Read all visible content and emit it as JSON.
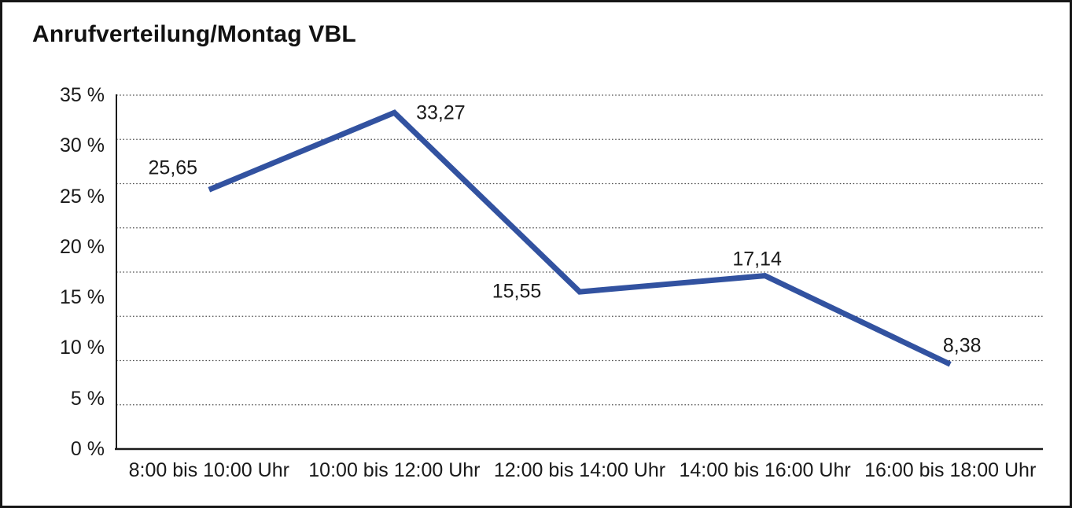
{
  "window": {
    "title": "Anrufverteilung/Montag VBL"
  },
  "chart_data": {
    "type": "line",
    "title": "Anrufverteilung/Montag VBL",
    "categories": [
      "8:00 bis 10:00 Uhr",
      "10:00 bis 12:00 Uhr",
      "12:00 bis 14:00 Uhr",
      "14:00 bis 16:00 Uhr",
      "16:00 bis 18:00 Uhr"
    ],
    "values": [
      25.65,
      33.27,
      15.55,
      17.14,
      8.38
    ],
    "value_labels": [
      "25,65",
      "33,27",
      "15,55",
      "17,14",
      "8,38"
    ],
    "yticks": [
      {
        "value": 35,
        "label": "35 %"
      },
      {
        "value": 30,
        "label": "30 %"
      },
      {
        "value": 25,
        "label": "25 %"
      },
      {
        "value": 20,
        "label": "20 %"
      },
      {
        "value": 15,
        "label": "15 %"
      },
      {
        "value": 10,
        "label": "10 %"
      },
      {
        "value": 5,
        "label": "5 %"
      },
      {
        "value": 0,
        "label": "0 %"
      }
    ],
    "ylim": [
      0,
      35
    ],
    "xlabel": "",
    "ylabel": "",
    "legend": "none",
    "grid": "horizontal-dotted",
    "series_color": "#3252A0",
    "axis_color": "#1a1a1a",
    "gridline_color": "#4d4d4d"
  }
}
